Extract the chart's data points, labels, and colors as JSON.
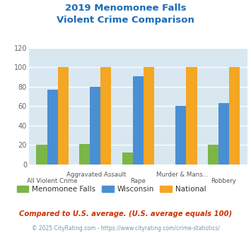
{
  "title": "2019 Menomonee Falls\nViolent Crime Comparison",
  "categories_top": [
    "Aggravated Assault",
    "Murder & Mans..."
  ],
  "categories_bottom": [
    "All Violent Crime",
    "Rape",
    "Robbery"
  ],
  "categories_all": [
    "All Violent Crime",
    "Aggravated Assault",
    "Rape",
    "Murder & Mans...",
    "Robbery"
  ],
  "menomonee_falls": [
    20,
    21,
    12,
    0,
    20
  ],
  "wisconsin": [
    77,
    80,
    91,
    60,
    63
  ],
  "national": [
    100,
    100,
    100,
    100,
    100
  ],
  "color_mf": "#7ab648",
  "color_wi": "#4a8fd4",
  "color_nat": "#f5a623",
  "ylim": [
    0,
    120
  ],
  "yticks": [
    0,
    20,
    40,
    60,
    80,
    100,
    120
  ],
  "title_color": "#1a6bb5",
  "bg_color": "#d9e8f0",
  "legend_labels": [
    "Menomonee Falls",
    "Wisconsin",
    "National"
  ],
  "footnote1": "Compared to U.S. average. (U.S. average equals 100)",
  "footnote2": "© 2025 CityRating.com - https://www.cityrating.com/crime-statistics/",
  "footnote1_color": "#cc3300",
  "footnote2_color": "#7799aa"
}
